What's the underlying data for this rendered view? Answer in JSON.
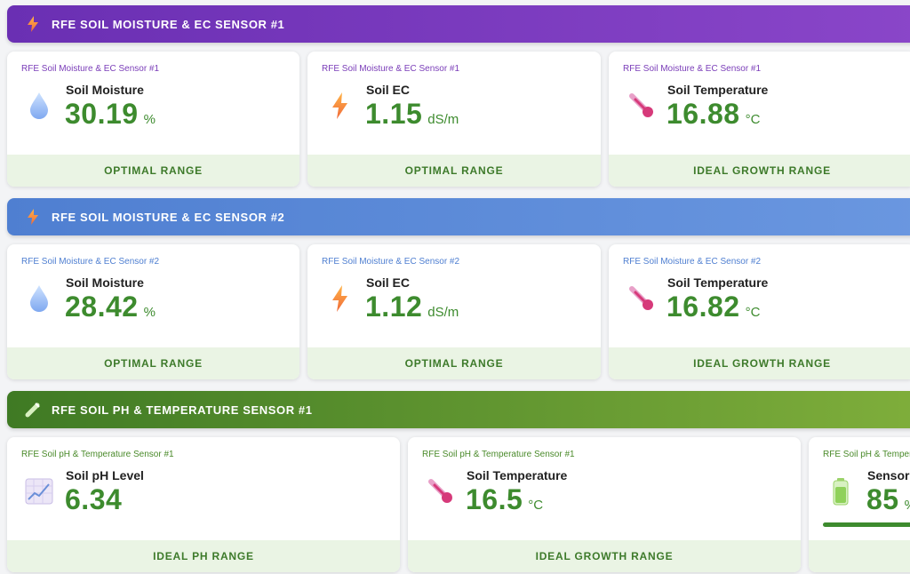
{
  "sections": [
    {
      "title": "RFE SOIL MOISTURE & EC SENSOR #1",
      "icon": "lightning-icon",
      "cards": [
        {
          "source": "RFE Soil Moisture & EC Sensor #1",
          "label": "Soil Moisture",
          "value": "30.19",
          "unit": "%",
          "status": "OPTIMAL RANGE",
          "icon": "water-drop-icon"
        },
        {
          "source": "RFE Soil Moisture & EC Sensor #1",
          "label": "Soil EC",
          "value": "1.15",
          "unit": "dS/m",
          "status": "OPTIMAL RANGE",
          "icon": "lightning-icon"
        },
        {
          "source": "RFE Soil Moisture & EC Sensor #1",
          "label": "Soil Temperature",
          "value": "16.88",
          "unit": "°C",
          "status": "IDEAL GROWTH RANGE",
          "icon": "thermometer-icon"
        }
      ]
    },
    {
      "title": "RFE SOIL MOISTURE & EC SENSOR #2",
      "icon": "lightning-icon",
      "cards": [
        {
          "source": "RFE Soil Moisture & EC Sensor #2",
          "label": "Soil Moisture",
          "value": "28.42",
          "unit": "%",
          "status": "OPTIMAL RANGE",
          "icon": "water-drop-icon"
        },
        {
          "source": "RFE Soil Moisture & EC Sensor #2",
          "label": "Soil EC",
          "value": "1.12",
          "unit": "dS/m",
          "status": "OPTIMAL RANGE",
          "icon": "lightning-icon"
        },
        {
          "source": "RFE Soil Moisture & EC Sensor #2",
          "label": "Soil Temperature",
          "value": "16.82",
          "unit": "°C",
          "status": "IDEAL GROWTH RANGE",
          "icon": "thermometer-icon"
        }
      ]
    },
    {
      "title": "RFE SOIL PH & TEMPERATURE SENSOR #1",
      "icon": "test-tube-icon",
      "cards": [
        {
          "source": "RFE Soil pH & Temperature Sensor #1",
          "label": "Soil pH Level",
          "value": "6.34",
          "unit": "",
          "status": "IDEAL PH RANGE",
          "icon": "chart-icon"
        },
        {
          "source": "RFE Soil pH & Temperature Sensor #1",
          "label": "Soil Temperature",
          "value": "16.5",
          "unit": "°C",
          "status": "IDEAL GROWTH RANGE",
          "icon": "thermometer-icon"
        },
        {
          "source": "RFE Soil pH & Tempera",
          "label": "Sensor B",
          "value": "85",
          "unit": "%",
          "status": "",
          "icon": "battery-icon",
          "progress": 85
        }
      ]
    }
  ],
  "colors": {
    "purple": "#6a2fb3",
    "blue": "#4f7fd1",
    "green": "#3f7a24",
    "value": "#3d8b2e",
    "footer_bg": "#eaf4e4"
  }
}
